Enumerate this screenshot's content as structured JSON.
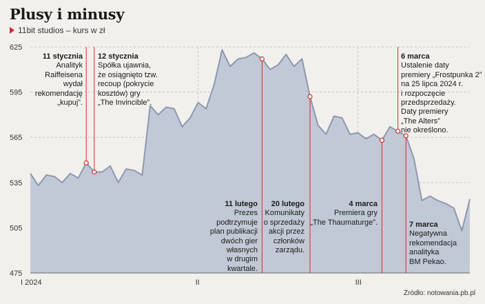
{
  "header": {
    "title": "Plusy i minusy",
    "subtitle": "11bit studios – kurs w zł"
  },
  "source": "Źródło: notowania.pb.pl",
  "colors": {
    "area": "#c2c9d6",
    "line": "#8d97b0",
    "marker": "#d32a2a",
    "accent": "#d32a2a"
  },
  "chart_data": {
    "type": "area",
    "ylim": [
      475,
      625
    ],
    "yticks": [
      475,
      505,
      535,
      565,
      595,
      625
    ],
    "xticks": [
      {
        "label": "I 2024",
        "index": 0
      },
      {
        "label": "II",
        "index": 21
      },
      {
        "label": "III",
        "index": 41
      }
    ],
    "grid": true,
    "values": [
      541,
      533,
      540,
      539,
      535,
      541,
      538,
      548,
      542,
      542,
      546,
      535,
      544,
      543,
      540,
      586,
      580,
      585,
      584,
      572,
      578,
      588,
      584,
      600,
      623,
      612,
      617,
      618,
      621,
      617,
      610,
      613,
      620,
      612,
      617,
      592,
      573,
      567,
      579,
      578,
      567,
      568,
      564,
      567,
      563,
      572,
      569,
      566,
      551,
      523,
      526,
      523,
      521,
      518,
      503,
      524
    ],
    "annotations": [
      {
        "index": 7,
        "date": "11 stycznia",
        "text": [
          "Analityk",
          "Raiffeisena",
          "wydał",
          "rekomendację",
          "„kupuj”."
        ]
      },
      {
        "index": 8,
        "date": "12 stycznia",
        "text": [
          "Spółka ujawnia,",
          "że osiągnięto tzw.",
          "recoup (pokrycie",
          "kosztów) gry",
          "„The Invincible”."
        ]
      },
      {
        "index": 29,
        "date": "11 lutego",
        "text": [
          "Prezes",
          "podtrzymuje",
          "plan publikacji",
          "dwóch gier",
          "własnych",
          "w drugim",
          "kwartale."
        ]
      },
      {
        "index": 35,
        "date": "20 lutego",
        "text": [
          "Komunikaty",
          "o sprzedaży",
          "akcji przez",
          "członków",
          "zarządu."
        ]
      },
      {
        "index": 44,
        "date": "4 marca",
        "text": [
          "Premiera gry",
          "„The Thaumaturge”."
        ]
      },
      {
        "index": 46,
        "date": "6 marca",
        "text": [
          "Ustalenie daty",
          "premiery „Frostpunka 2”",
          "na 25 lipca 2024 r.",
          "i rozpoczęcie",
          "przedsprzedaży.",
          "Daty premiery",
          "„The Alters”",
          "nie określono."
        ]
      },
      {
        "index": 47,
        "date": "7 marca",
        "text": [
          "Negatywna",
          "rekomendacja",
          "analityka",
          "BM Pekao."
        ]
      }
    ]
  }
}
